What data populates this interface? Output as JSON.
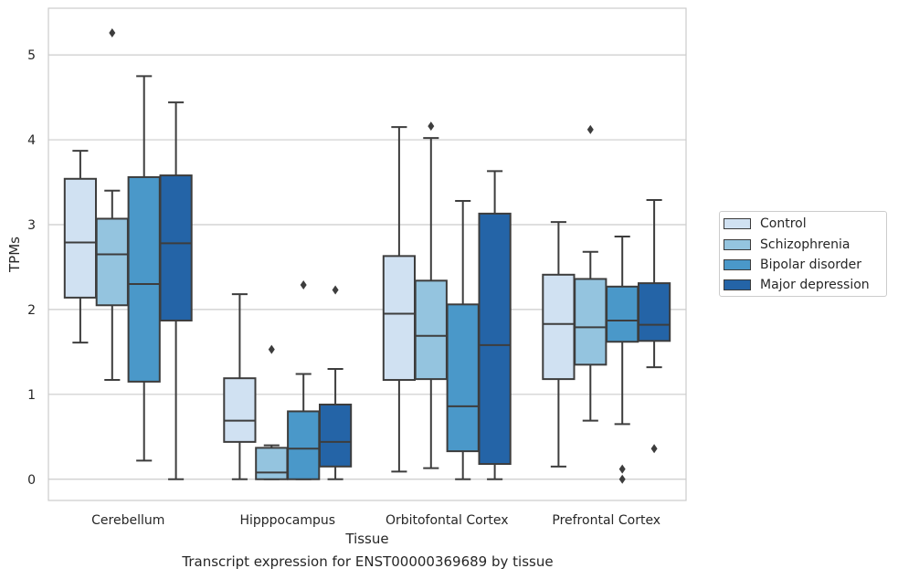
{
  "chart_data": {
    "type": "box",
    "xlabel": "Tissue",
    "ylabel": "TPMs",
    "ylim": [
      -0.25,
      5.55
    ],
    "yticks": [
      0,
      1,
      2,
      3,
      4,
      5
    ],
    "grid": true,
    "legend_position": "right",
    "categories": [
      "Cerebellum",
      "Hipppocampus",
      "Orbitofontal Cortex",
      "Prefrontal Cortex"
    ],
    "series": [
      {
        "name": "Control",
        "color": "#d0e1f2",
        "boxes": [
          {
            "whisker_low": 1.61,
            "q1": 2.14,
            "median": 2.79,
            "q3": 3.54,
            "whisker_high": 3.87,
            "outliers": []
          },
          {
            "whisker_low": 0.0,
            "q1": 0.44,
            "median": 0.69,
            "q3": 1.19,
            "whisker_high": 2.18,
            "outliers": []
          },
          {
            "whisker_low": 0.09,
            "q1": 1.17,
            "median": 1.95,
            "q3": 2.63,
            "whisker_high": 4.15,
            "outliers": []
          },
          {
            "whisker_low": 0.15,
            "q1": 1.18,
            "median": 1.83,
            "q3": 2.41,
            "whisker_high": 3.03,
            "outliers": []
          }
        ]
      },
      {
        "name": "Schizophrenia",
        "color": "#94c4df",
        "boxes": [
          {
            "whisker_low": 1.17,
            "q1": 2.05,
            "median": 2.65,
            "q3": 3.07,
            "whisker_high": 3.4,
            "outliers": [
              5.26
            ]
          },
          {
            "whisker_low": 0.0,
            "q1": 0.0,
            "median": 0.08,
            "q3": 0.37,
            "whisker_high": 0.4,
            "outliers": [
              1.53
            ]
          },
          {
            "whisker_low": 0.13,
            "q1": 1.18,
            "median": 1.69,
            "q3": 2.34,
            "whisker_high": 4.02,
            "outliers": [
              4.16
            ]
          },
          {
            "whisker_low": 0.69,
            "q1": 1.35,
            "median": 1.79,
            "q3": 2.36,
            "whisker_high": 2.68,
            "outliers": [
              4.12
            ]
          }
        ]
      },
      {
        "name": "Bipolar disorder",
        "color": "#4a98c9",
        "boxes": [
          {
            "whisker_low": 0.22,
            "q1": 1.15,
            "median": 2.3,
            "q3": 3.56,
            "whisker_high": 4.75,
            "outliers": []
          },
          {
            "whisker_low": 0.0,
            "q1": 0.0,
            "median": 0.36,
            "q3": 0.8,
            "whisker_high": 1.24,
            "outliers": [
              2.29
            ]
          },
          {
            "whisker_low": 0.0,
            "q1": 0.33,
            "median": 0.86,
            "q3": 2.06,
            "whisker_high": 3.28,
            "outliers": []
          },
          {
            "whisker_low": 0.65,
            "q1": 1.62,
            "median": 1.87,
            "q3": 2.27,
            "whisker_high": 2.86,
            "outliers": [
              0.12,
              0.0
            ]
          }
        ]
      },
      {
        "name": "Major depression",
        "color": "#2464a7",
        "boxes": [
          {
            "whisker_low": 0.0,
            "q1": 1.87,
            "median": 2.78,
            "q3": 3.58,
            "whisker_high": 4.44,
            "outliers": []
          },
          {
            "whisker_low": 0.0,
            "q1": 0.15,
            "median": 0.44,
            "q3": 0.88,
            "whisker_high": 1.3,
            "outliers": [
              2.23
            ]
          },
          {
            "whisker_low": 0.0,
            "q1": 0.18,
            "median": 1.58,
            "q3": 3.13,
            "whisker_high": 3.63,
            "outliers": []
          },
          {
            "whisker_low": 1.32,
            "q1": 1.63,
            "median": 1.82,
            "q3": 2.31,
            "whisker_high": 3.29,
            "outliers": [
              0.36
            ]
          }
        ]
      }
    ]
  },
  "caption": "Transcript expression for ENST00000369689 by tissue"
}
